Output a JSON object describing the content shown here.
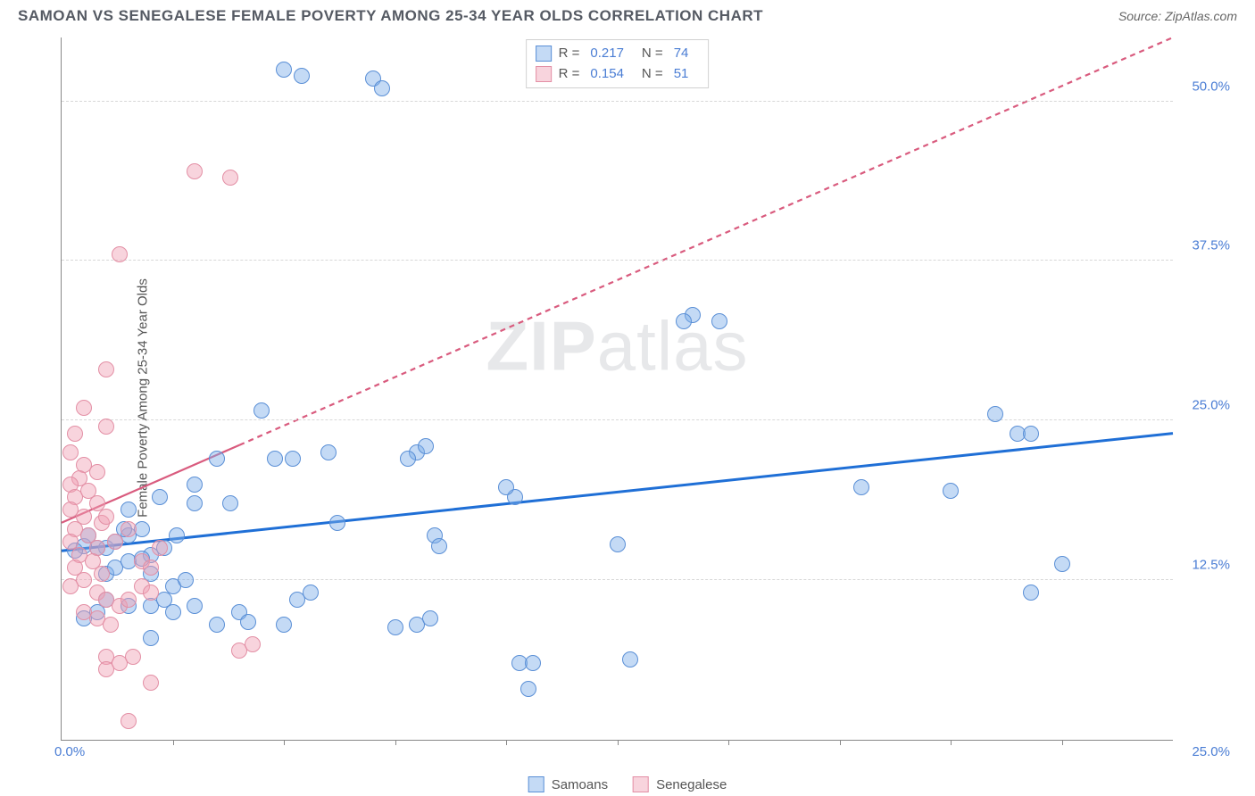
{
  "header": {
    "title": "SAMOAN VS SENEGALESE FEMALE POVERTY AMONG 25-34 YEAR OLDS CORRELATION CHART",
    "source_label": "Source:",
    "source_value": "ZipAtlas.com"
  },
  "watermark": {
    "part1": "ZIP",
    "part2": "atlas"
  },
  "chart": {
    "type": "scatter",
    "background_color": "#ffffff",
    "grid_color": "#d8d8d8",
    "axis_color": "#888888",
    "label_color": "#4a7dd4",
    "yaxis_title": "Female Poverty Among 25-34 Year Olds",
    "xlim": [
      0,
      25
    ],
    "ylim": [
      0,
      55
    ],
    "ytick_labels": [
      "12.5%",
      "25.0%",
      "37.5%",
      "50.0%"
    ],
    "ytick_values": [
      12.5,
      25.0,
      37.5,
      50.0
    ],
    "xtick_values": [
      2.5,
      5,
      7.5,
      10,
      12.5,
      15,
      17.5,
      20,
      22.5
    ],
    "x_origin_label": "0.0%",
    "x_max_label": "25.0%",
    "marker_radius": 9,
    "series": [
      {
        "name": "Samoans",
        "color_fill": "rgba(124,172,232,0.45)",
        "color_stroke": "#5a8fd6",
        "trend_color": "#1f6fd6",
        "trend_width": 3,
        "trend_dash": "none",
        "trend": {
          "x1": 0,
          "y1": 14.8,
          "x2": 25,
          "y2": 24.0
        },
        "R": "0.217",
        "N": "74",
        "points": [
          [
            5.0,
            52.5
          ],
          [
            5.4,
            52.0
          ],
          [
            7.0,
            51.8
          ],
          [
            7.2,
            51.0
          ],
          [
            14.2,
            33.3
          ],
          [
            14.8,
            32.8
          ],
          [
            14.0,
            32.8
          ],
          [
            21.0,
            25.5
          ],
          [
            21.5,
            24.0
          ],
          [
            21.8,
            24.0
          ],
          [
            20.0,
            19.5
          ],
          [
            22.5,
            13.8
          ],
          [
            21.8,
            11.5
          ],
          [
            18.0,
            19.8
          ],
          [
            12.5,
            15.3
          ],
          [
            12.8,
            6.3
          ],
          [
            10.3,
            6.0
          ],
          [
            10.6,
            6.0
          ],
          [
            10.2,
            19.0
          ],
          [
            10.0,
            19.8
          ],
          [
            8.0,
            22.5
          ],
          [
            8.2,
            23.0
          ],
          [
            7.8,
            22.0
          ],
          [
            8.4,
            16.0
          ],
          [
            8.5,
            15.2
          ],
          [
            8.0,
            9.0
          ],
          [
            8.3,
            9.5
          ],
          [
            7.5,
            8.8
          ],
          [
            10.5,
            4.0
          ],
          [
            6.0,
            22.5
          ],
          [
            4.5,
            25.8
          ],
          [
            4.8,
            22.0
          ],
          [
            5.2,
            22.0
          ],
          [
            6.2,
            17.0
          ],
          [
            5.0,
            9.0
          ],
          [
            5.3,
            11.0
          ],
          [
            5.6,
            11.5
          ],
          [
            4.0,
            10.0
          ],
          [
            4.2,
            9.2
          ],
          [
            3.0,
            18.5
          ],
          [
            3.5,
            22.0
          ],
          [
            2.0,
            14.5
          ],
          [
            2.3,
            15.0
          ],
          [
            2.6,
            16.0
          ],
          [
            2.0,
            10.5
          ],
          [
            2.3,
            11.0
          ],
          [
            2.5,
            12.0
          ],
          [
            2.8,
            12.5
          ],
          [
            1.5,
            16.0
          ],
          [
            1.8,
            16.5
          ],
          [
            1.0,
            15.0
          ],
          [
            1.2,
            15.5
          ],
          [
            1.4,
            16.5
          ],
          [
            0.8,
            15.0
          ],
          [
            0.5,
            15.2
          ],
          [
            0.3,
            14.8
          ],
          [
            0.6,
            16.0
          ],
          [
            1.0,
            13.0
          ],
          [
            1.2,
            13.5
          ],
          [
            1.5,
            14.0
          ],
          [
            1.8,
            14.2
          ],
          [
            2.0,
            13.0
          ],
          [
            2.5,
            10.0
          ],
          [
            3.0,
            10.5
          ],
          [
            3.5,
            9.0
          ],
          [
            0.5,
            9.5
          ],
          [
            0.8,
            10.0
          ],
          [
            1.0,
            11.0
          ],
          [
            1.5,
            10.5
          ],
          [
            2.0,
            8.0
          ],
          [
            1.5,
            18.0
          ],
          [
            2.2,
            19.0
          ],
          [
            3.0,
            20.0
          ],
          [
            3.8,
            18.5
          ]
        ]
      },
      {
        "name": "Senegalese",
        "color_fill": "rgba(240,160,180,0.45)",
        "color_stroke": "#e38fa5",
        "trend_color": "#d95b7e",
        "trend_width": 2.2,
        "trend_dash": "6,5",
        "trend_solid_until_x": 4.0,
        "trend": {
          "x1": 0,
          "y1": 17.0,
          "x2": 25,
          "y2": 55.0
        },
        "R": "0.154",
        "N": "51",
        "points": [
          [
            3.0,
            44.5
          ],
          [
            3.8,
            44.0
          ],
          [
            1.3,
            38.0
          ],
          [
            1.0,
            29.0
          ],
          [
            0.5,
            26.0
          ],
          [
            1.0,
            24.5
          ],
          [
            0.3,
            24.0
          ],
          [
            0.2,
            22.5
          ],
          [
            0.5,
            21.5
          ],
          [
            0.8,
            21.0
          ],
          [
            0.4,
            20.5
          ],
          [
            0.2,
            20.0
          ],
          [
            0.6,
            19.5
          ],
          [
            0.3,
            19.0
          ],
          [
            0.8,
            18.5
          ],
          [
            0.2,
            18.0
          ],
          [
            0.5,
            17.5
          ],
          [
            0.9,
            17.0
          ],
          [
            0.3,
            16.5
          ],
          [
            0.6,
            16.0
          ],
          [
            0.2,
            15.5
          ],
          [
            0.8,
            15.0
          ],
          [
            0.4,
            14.5
          ],
          [
            0.7,
            14.0
          ],
          [
            0.3,
            13.5
          ],
          [
            0.9,
            13.0
          ],
          [
            0.5,
            12.5
          ],
          [
            0.2,
            12.0
          ],
          [
            0.8,
            11.5
          ],
          [
            1.2,
            15.5
          ],
          [
            1.5,
            16.5
          ],
          [
            1.8,
            14.0
          ],
          [
            2.0,
            13.5
          ],
          [
            2.2,
            15.0
          ],
          [
            1.0,
            11.0
          ],
          [
            1.3,
            10.5
          ],
          [
            0.5,
            10.0
          ],
          [
            0.8,
            9.5
          ],
          [
            1.1,
            9.0
          ],
          [
            1.5,
            11.0
          ],
          [
            1.8,
            12.0
          ],
          [
            2.0,
            11.5
          ],
          [
            1.0,
            6.5
          ],
          [
            1.3,
            6.0
          ],
          [
            1.6,
            6.5
          ],
          [
            1.0,
            5.5
          ],
          [
            2.0,
            4.5
          ],
          [
            4.0,
            7.0
          ],
          [
            4.3,
            7.5
          ],
          [
            1.5,
            1.5
          ],
          [
            1.0,
            17.5
          ]
        ]
      }
    ]
  },
  "legend_top": {
    "r_label": "R =",
    "n_label": "N ="
  },
  "legend_bottom": {
    "items": [
      "Samoans",
      "Senegalese"
    ]
  }
}
